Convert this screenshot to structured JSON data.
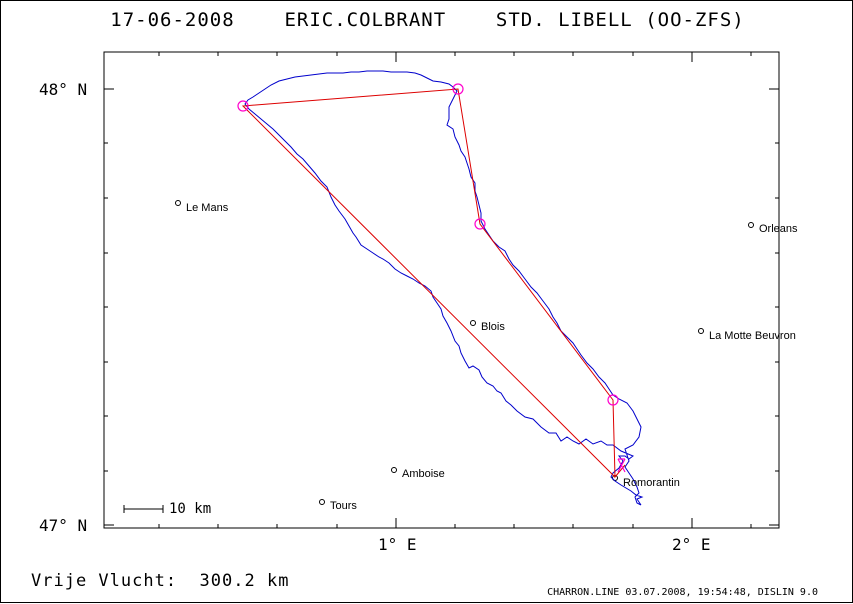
{
  "header": {
    "date": "17-06-2008",
    "pilot": "ERIC.COLBRANT",
    "glider": "STD. LIBELL (OO-ZFS)"
  },
  "axes": {
    "lat_labels": [
      "48° N",
      "47° N"
    ],
    "lon_labels": [
      "1° E",
      "2° E"
    ]
  },
  "towns": [
    {
      "name": "Le Mans"
    },
    {
      "name": "Orleans"
    },
    {
      "name": "Blois"
    },
    {
      "name": "La Motte Beuvron"
    },
    {
      "name": "Amboise"
    },
    {
      "name": "Tours"
    },
    {
      "name": "Romorantin"
    }
  ],
  "scale": {
    "label": "10 km"
  },
  "footer": {
    "distance_label": "Vrije Vlucht:",
    "distance_value": "300.2 km",
    "credits": "CHARRON.LINE 03.07.2008, 19:54:48, DISLIN 9.0"
  },
  "colors": {
    "track": "#0000cc",
    "task": "#dd0000",
    "turnpoint": "#ff00cc",
    "frame": "#000000"
  }
}
